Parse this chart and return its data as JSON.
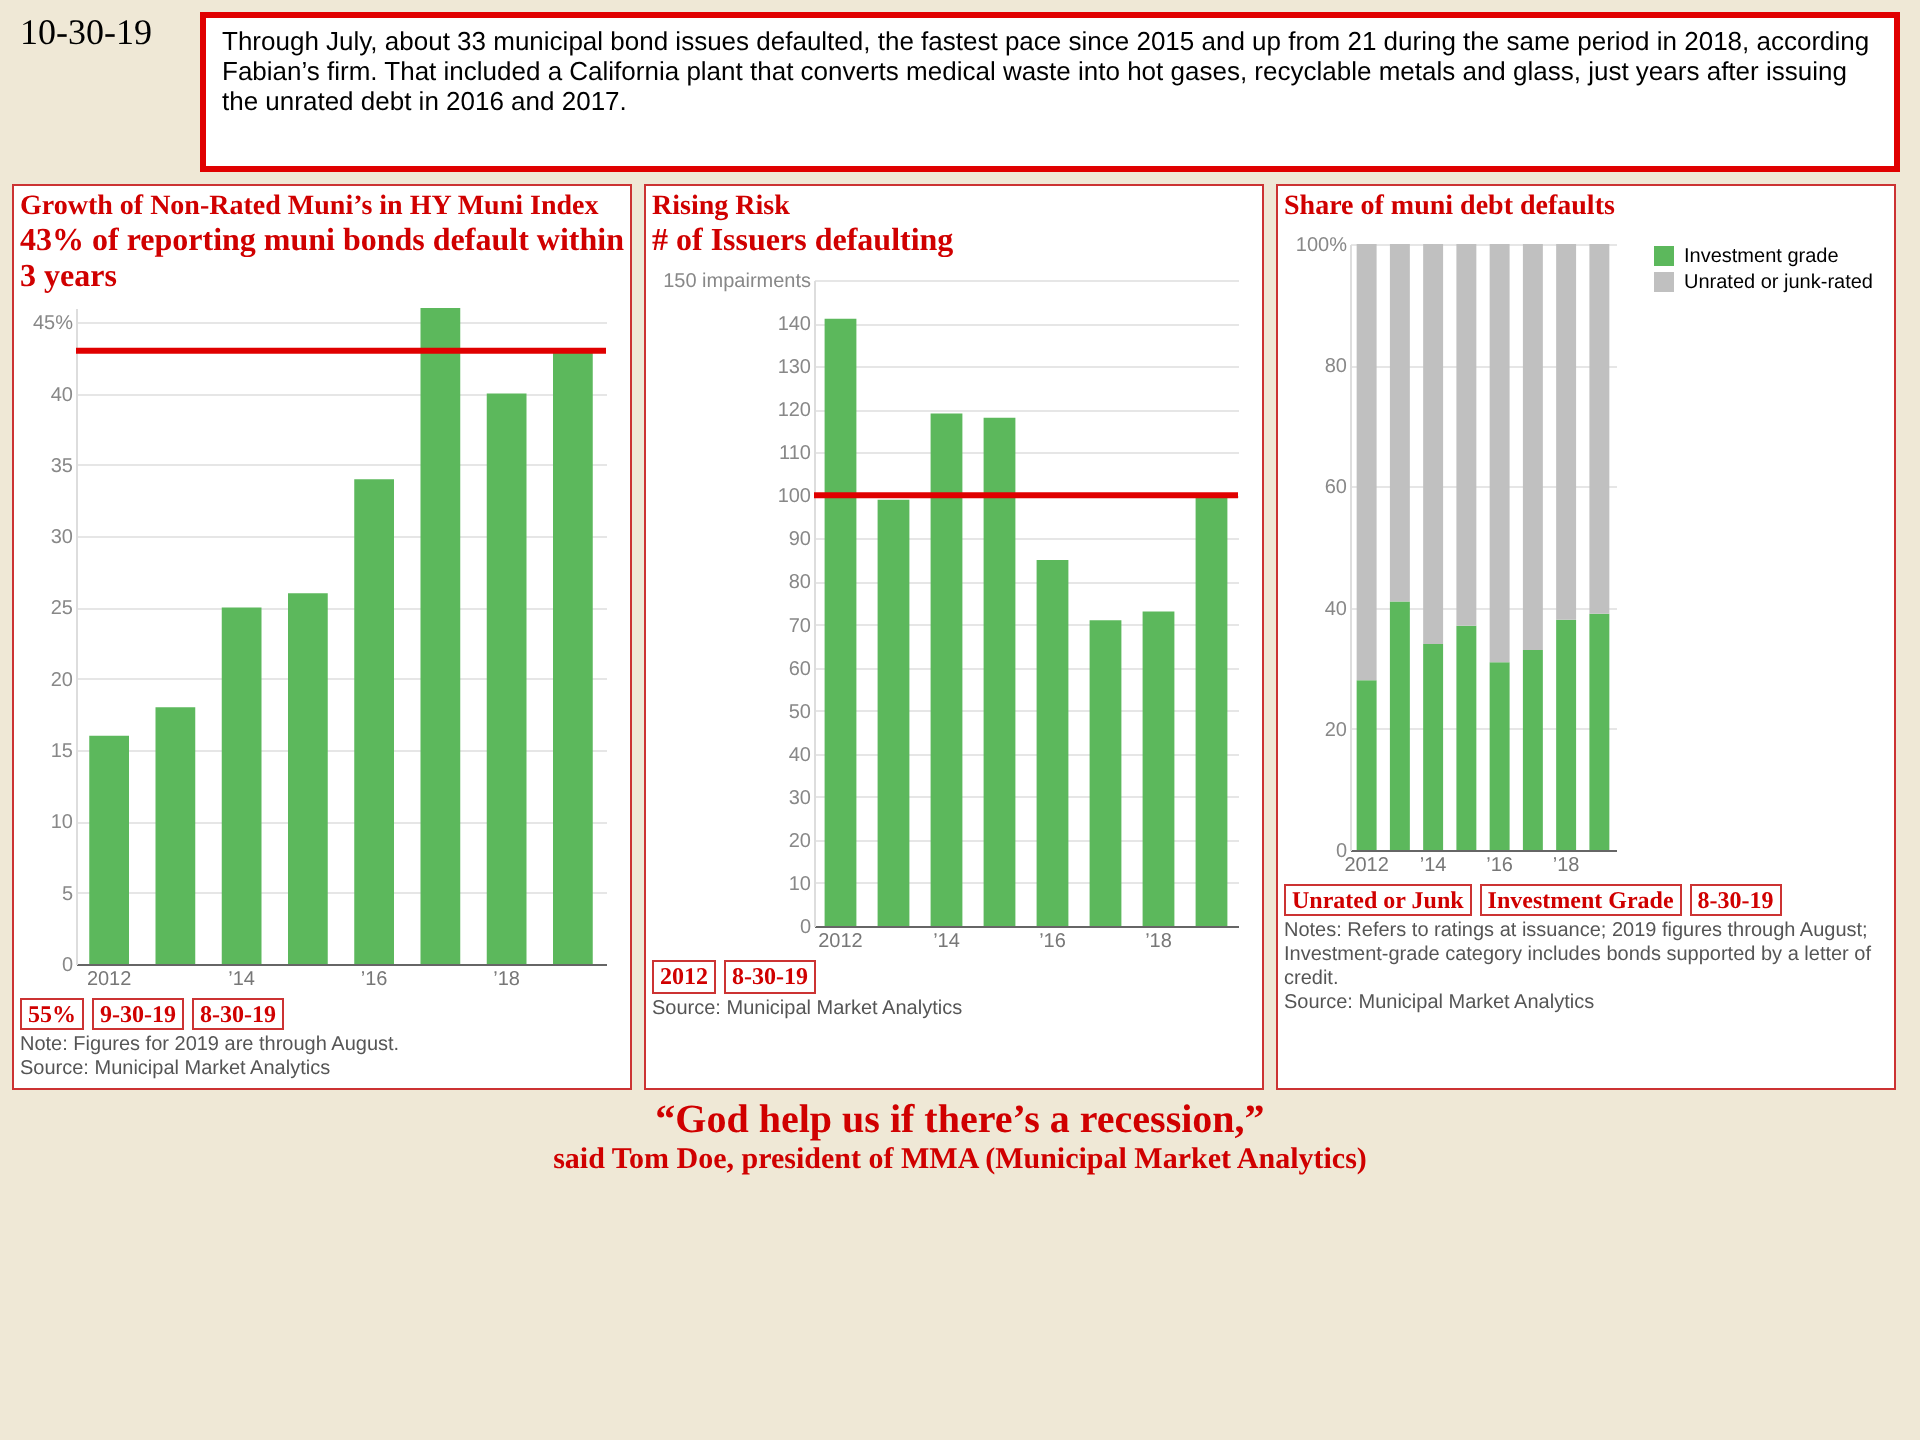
{
  "chart_data": [
    {
      "type": "bar",
      "title": "Growth of Non-Rated Muni’s in HY Muni Index",
      "subtitle": "43% of reporting muni bonds default within 3 years",
      "categories": [
        "2012",
        null,
        "’14",
        null,
        "’16",
        null,
        "’18",
        null
      ],
      "values": [
        16,
        18,
        25,
        26,
        34,
        46,
        40,
        43
      ],
      "color": "#5cb85c",
      "ylim": [
        0,
        46
      ],
      "yticks": [
        0,
        5,
        10,
        15,
        20,
        25,
        30,
        35,
        40,
        {
          "value": 45,
          "label": "45%"
        }
      ],
      "grid": "y",
      "ref_lines": [
        {
          "axis": "y",
          "value": 43,
          "color": "#e00000"
        }
      ],
      "annotations": [
        "10-30-19",
        "Through July, about 33 municipal bond issues defaulted, the fastest pace since 2015 and up from 21 during the same period in 2018, according Fabian’s firm. That included a California plant that converts medical waste into hot gases, recyclable metals and glass, just years after issuing the unrated debt in 2016 and 2017.",
        "55%",
        "9-30-19",
        "8-30-19",
        "Note: Figures for 2019 are through August.",
        "Source: Municipal Market Analytics",
        "“God help us if there’s a recession,”",
        "said Tom Doe, president of MMA (Municipal Market Analytics)"
      ]
    },
    {
      "type": "bar",
      "title": "Rising Risk",
      "subtitle": "# of Issuers  defaulting",
      "categories": [
        "2012",
        null,
        "’14",
        null,
        "’16",
        null,
        "’18",
        null
      ],
      "values": [
        141,
        99,
        119,
        118,
        85,
        71,
        73,
        100
      ],
      "color": "#5cb85c",
      "ylim": [
        0,
        150
      ],
      "yticks": [
        0,
        10,
        20,
        30,
        40,
        50,
        60,
        70,
        80,
        90,
        100,
        110,
        120,
        130,
        140,
        {
          "value": 150,
          "label": "150 impairments"
        }
      ],
      "grid": "y",
      "ref_lines": [
        {
          "axis": "y",
          "value": 100,
          "color": "#e00000"
        }
      ],
      "annotations": [
        "2012",
        "8-30-19",
        "Source: Municipal Market Analytics"
      ]
    },
    {
      "type": "bar",
      "title": "Share of muni  debt defaults",
      "stacked": true,
      "categories": [
        "2012",
        null,
        "’14",
        null,
        "’16",
        null,
        "’18",
        null
      ],
      "series": [
        {
          "name": "Investment grade",
          "color": "#5cb85c",
          "values": [
            28,
            41,
            34,
            37,
            31,
            33,
            38,
            39
          ]
        },
        {
          "name": "Unrated or junk-rated",
          "color": "#c0c0c0",
          "values": [
            72,
            59,
            66,
            63,
            69,
            67,
            62,
            61
          ]
        }
      ],
      "ylim": [
        0,
        100
      ],
      "yticks": [
        0,
        20,
        40,
        60,
        80,
        {
          "value": 100,
          "label": "100%"
        }
      ],
      "grid": "y",
      "legend": "right",
      "annotations": [
        "Unrated or Junk",
        "Investment Grade",
        "8-30-19",
        "Notes: Refers to ratings at issuance; 2019 figures through August; Investment-grade category includes bonds supported by a letter of credit.",
        "Source: Municipal Market Analytics"
      ]
    }
  ]
}
